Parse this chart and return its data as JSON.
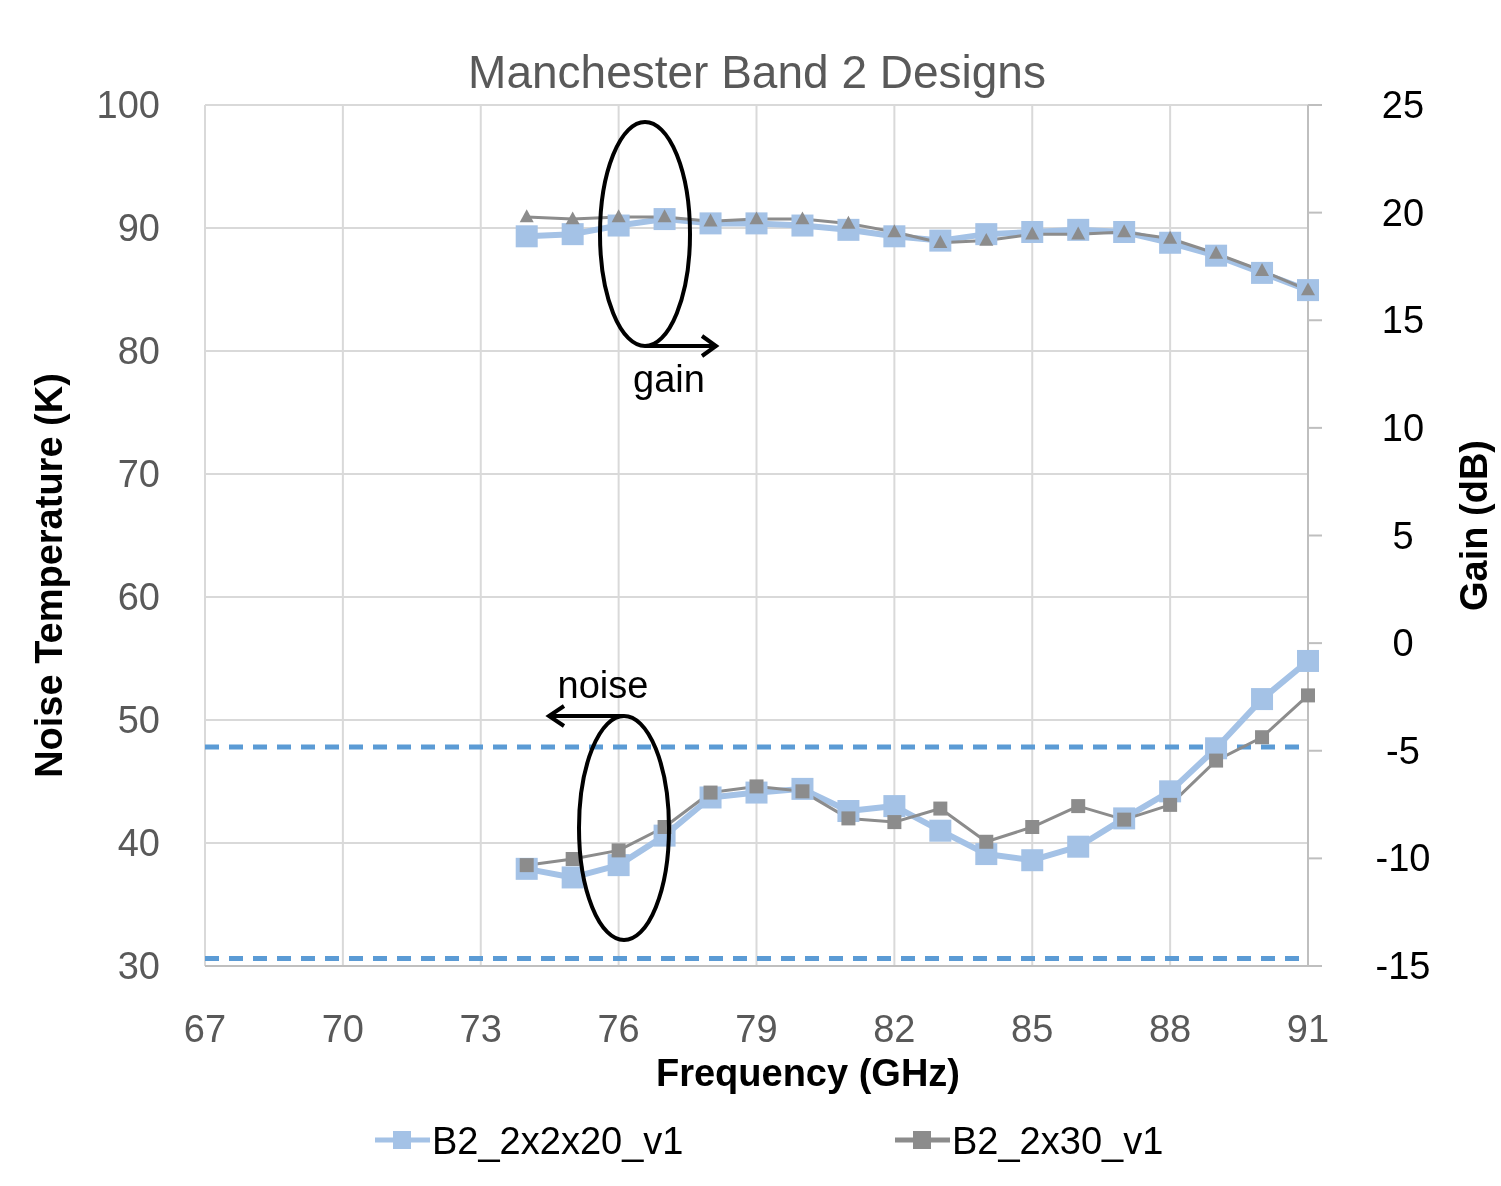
{
  "chart_data": {
    "type": "line",
    "title": "Manchester Band 2 Designs",
    "xlabel": "Frequency (GHz)",
    "ylabel": "Noise Temperature (K)",
    "y2label": "Gain (dB)",
    "x": [
      74,
      75,
      76,
      77,
      78,
      79,
      80,
      81,
      82,
      83,
      84,
      85,
      86,
      87,
      88,
      89,
      90,
      91
    ],
    "xlim": [
      67,
      91
    ],
    "xticks": [
      67,
      70,
      73,
      76,
      79,
      82,
      85,
      88,
      91
    ],
    "ylim": [
      30,
      100
    ],
    "yticks": [
      30,
      40,
      50,
      60,
      70,
      80,
      90,
      100
    ],
    "y2lim": [
      -15,
      25
    ],
    "y2ticks": [
      -15,
      -10,
      -5,
      0,
      5,
      10,
      15,
      20,
      25
    ],
    "grid": true,
    "legend": "bottom",
    "line_style": "solid",
    "series": [
      {
        "name": "B2_2x2x20_v1",
        "color": "#a4c2e6",
        "marker": "square",
        "values": [
          37.9,
          37.2,
          38.2,
          40.6,
          43.7,
          44.1,
          44.4,
          42.6,
          43.0,
          41.0,
          39.1,
          38.6,
          39.7,
          42.0,
          44.2,
          47.7,
          51.7,
          54.8
        ]
      },
      {
        "name": "B2_2x30_v1",
        "color": "#8c8c8c",
        "marker": "square",
        "values": [
          38.2,
          38.7,
          39.4,
          41.3,
          44.1,
          44.6,
          44.2,
          42.0,
          41.7,
          42.8,
          40.1,
          41.3,
          43.0,
          41.9,
          43.1,
          46.7,
          48.6,
          52.0
        ]
      },
      {
        "color": "#a4c2e6",
        "marker": "square",
        "axis": "y2",
        "values": [
          18.9,
          19.0,
          19.4,
          19.7,
          19.5,
          19.5,
          19.4,
          19.2,
          18.9,
          18.7,
          19.0,
          19.1,
          19.2,
          19.1,
          18.6,
          18.0,
          17.2,
          16.4
        ]
      },
      {
        "color": "#8c8c8c",
        "marker": "triangle",
        "axis": "y2",
        "values": [
          19.8,
          19.7,
          19.8,
          19.8,
          19.6,
          19.7,
          19.7,
          19.5,
          19.1,
          18.6,
          18.7,
          19.0,
          19.0,
          19.1,
          18.8,
          18.1,
          17.3,
          16.4
        ]
      }
    ],
    "ref_lines": [
      {
        "axis": "y",
        "value": 47.8,
        "color": "#5b9bd5",
        "line_style": "dashed"
      },
      {
        "axis": "y",
        "value": 30.6,
        "color": "#5b9bd5",
        "line_style": "dashed"
      }
    ],
    "annotations": [
      "gain",
      "noise"
    ]
  }
}
